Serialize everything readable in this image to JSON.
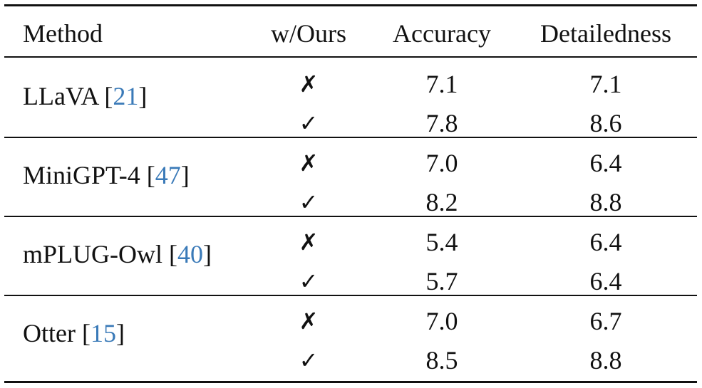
{
  "table": {
    "header": [
      "Method",
      "w/Ours",
      "Accuracy",
      "Detailedness"
    ],
    "cite_brackets": [
      "[",
      "]"
    ],
    "groups": [
      {
        "method": "LLaVA",
        "cite": "21",
        "rows": [
          [
            "✗",
            "7.1",
            "7.1"
          ],
          [
            "✓",
            "7.8",
            "8.6"
          ]
        ]
      },
      {
        "method": "MiniGPT-4",
        "cite": "47",
        "rows": [
          [
            "✗",
            "7.0",
            "6.4"
          ],
          [
            "✓",
            "8.2",
            "8.8"
          ]
        ]
      },
      {
        "method": "mPLUG-Owl",
        "cite": "40",
        "rows": [
          [
            "✗",
            "5.4",
            "6.4"
          ],
          [
            "✓",
            "5.7",
            "6.4"
          ]
        ]
      },
      {
        "method": "Otter",
        "cite": "15",
        "rows": [
          [
            "✗",
            "7.0",
            "6.7"
          ],
          [
            "✓",
            "8.5",
            "8.8"
          ]
        ]
      }
    ]
  }
}
